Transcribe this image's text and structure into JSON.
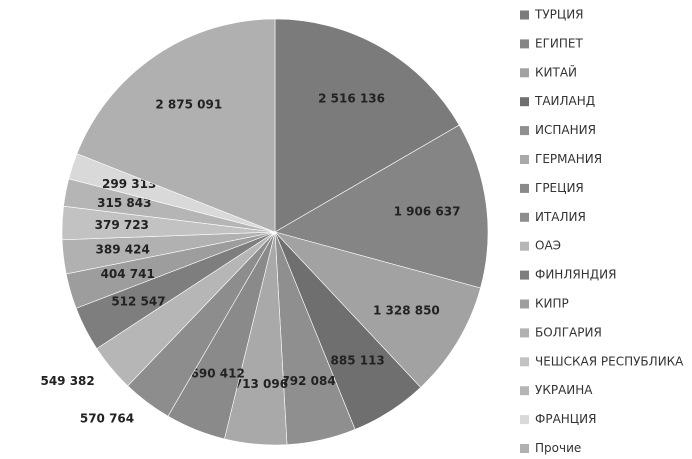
{
  "chart_data": {
    "type": "pie",
    "categories": [
      "ТУРЦИЯ",
      "ЕГИПЕТ",
      "КИТАЙ",
      "ТАИЛАНД",
      "ИСПАНИЯ",
      "ГЕРМАНИЯ",
      "ГРЕЦИЯ",
      "ИТАЛИЯ",
      "ОАЭ",
      "ФИНЛЯНДИЯ",
      "КИПР",
      "БОЛГАРИЯ",
      "ЧЕШСКАЯ РЕСПУБЛИКА",
      "УКРАИНА",
      "ФРАНЦИЯ",
      "Прочие"
    ],
    "values": [
      2516136,
      1906637,
      1328850,
      885113,
      792084,
      713096,
      690412,
      570764,
      549382,
      512547,
      404741,
      389424,
      379723,
      315843,
      299313,
      2875091
    ],
    "value_labels": [
      "2 516 136",
      "1 906 637",
      "1 328 850",
      "885 113",
      "792 084",
      "713 096",
      "690 412",
      "570 764",
      "549 382",
      "512 547",
      "404 741",
      "389 424",
      "379 723",
      "315 843",
      "299 313",
      "2 875 091"
    ],
    "colors": [
      "#7b7b7b",
      "#858585",
      "#a2a2a2",
      "#6f6f6f",
      "#8f8f8f",
      "#a9a9a9",
      "#8a8a8a",
      "#8d8d8d",
      "#b6b6b6",
      "#7e7e7e",
      "#9d9d9d",
      "#b1b1b1",
      "#c2c2c2",
      "#b5b5b5",
      "#d9d9d9",
      "#b0b0b0"
    ],
    "legend": "right"
  }
}
